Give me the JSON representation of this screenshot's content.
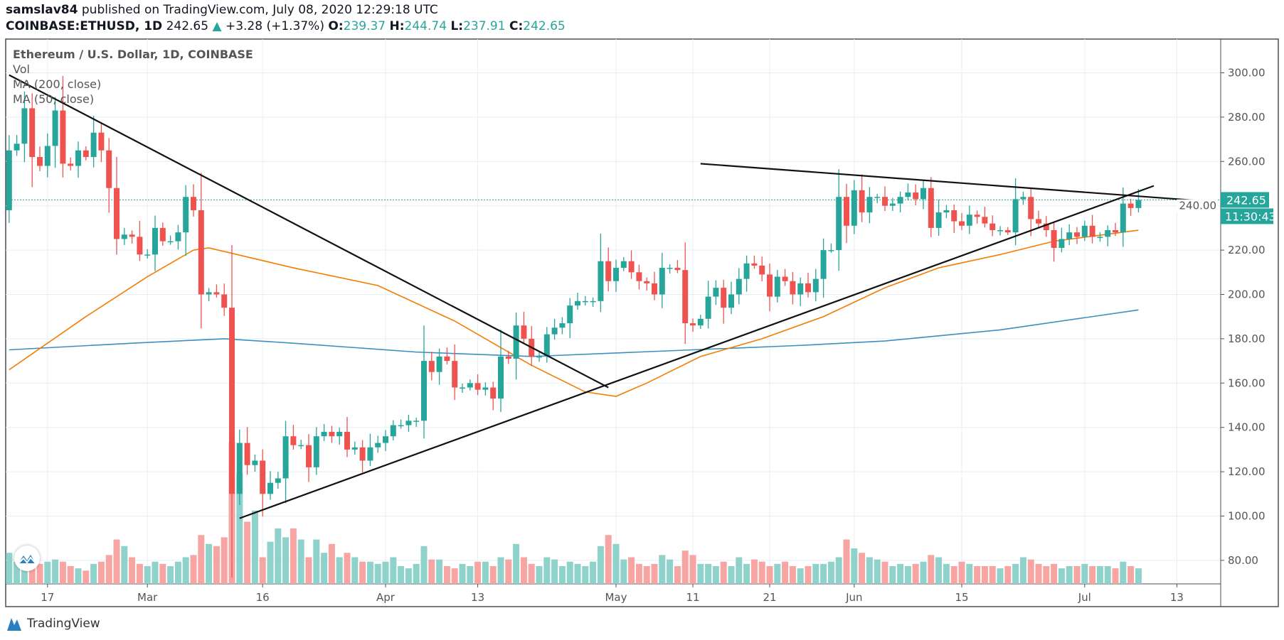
{
  "header": {
    "author": "samslav84",
    "published_text": "published on TradingView.com, July 08, 2020 12:29:18 UTC",
    "symbol": "COINBASE:ETHUSD, 1D",
    "last": "242.65",
    "change": "+3.28 (+1.37%)",
    "o_label": "O:",
    "o": "239.37",
    "h_label": "H:",
    "h": "244.74",
    "l_label": "L:",
    "l": "237.91",
    "c_label": "C:",
    "c": "242.65"
  },
  "legend": {
    "title": "Ethereum / U.S. Dollar, 1D, COINBASE",
    "vol": "Vol",
    "ma200": "MA (200, close)",
    "ma50": "MA (50, close)"
  },
  "price_badge": "242.65",
  "countdown_badge": "11:30:43",
  "footer": {
    "brand": "TradingView"
  },
  "colors": {
    "up": "#26a69a",
    "down": "#ef5350",
    "ma50": "#f57c00",
    "ma200": "#3a8fc0",
    "grid": "#e6eef4"
  },
  "chart_data": {
    "type": "candlestick",
    "title": "Ethereum / U.S. Dollar, 1D, COINBASE",
    "start_date": "2020-02-12",
    "ylim": [
      70,
      315
    ],
    "y_ticks": [
      "300.00",
      "280.00",
      "260.00",
      "240.00",
      "220.00",
      "200.00",
      "180.00",
      "160.00",
      "140.00",
      "120.00",
      "100.00",
      "80.00"
    ],
    "y_tick_values": [
      300,
      280,
      260,
      240,
      220,
      200,
      180,
      160,
      140,
      120,
      100,
      80
    ],
    "x_ticks": [
      {
        "label": "17",
        "date": "2020-02-17"
      },
      {
        "label": "Mar",
        "date": "2020-03-01"
      },
      {
        "label": "16",
        "date": "2020-03-16"
      },
      {
        "label": "Apr",
        "date": "2020-04-01"
      },
      {
        "label": "13",
        "date": "2020-04-13"
      },
      {
        "label": "May",
        "date": "2020-05-01"
      },
      {
        "label": "11",
        "date": "2020-05-11"
      },
      {
        "label": "21",
        "date": "2020-05-21"
      },
      {
        "label": "Jun",
        "date": "2020-06-01"
      },
      {
        "label": "15",
        "date": "2020-06-15"
      },
      {
        "label": "Jul",
        "date": "2020-07-01"
      },
      {
        "label": "13",
        "date": "2020-07-13"
      }
    ],
    "first_open": 238,
    "closes": [
      265,
      268,
      284,
      262,
      258,
      267,
      283,
      259,
      258,
      265,
      262,
      273,
      265,
      248,
      225,
      227,
      226,
      218,
      218,
      230,
      224,
      224,
      228,
      244,
      238,
      200,
      201,
      200,
      194,
      110,
      133,
      123,
      125,
      110,
      115,
      117,
      136,
      132,
      132,
      122,
      136,
      138,
      136,
      138,
      130,
      131,
      125,
      131,
      133,
      136,
      141,
      141,
      143,
      143,
      170,
      165,
      172,
      170,
      158,
      158,
      160,
      157,
      158,
      153,
      172,
      171,
      186,
      180,
      172,
      172,
      182,
      185,
      187,
      195,
      197,
      197,
      197,
      215,
      206,
      212,
      215,
      210,
      206,
      205,
      200,
      212,
      212,
      211,
      187,
      186,
      189,
      199,
      203,
      194,
      200,
      207,
      214,
      213,
      209,
      199,
      208,
      206,
      200,
      205,
      201,
      207,
      220,
      220,
      244,
      231,
      247,
      237,
      244,
      244,
      240,
      241,
      244,
      246,
      243,
      248,
      230,
      237,
      238,
      233,
      231,
      236,
      235,
      232,
      229,
      229,
      228,
      243,
      244,
      234,
      232,
      229,
      221,
      225,
      228,
      226,
      231,
      226,
      226,
      229,
      228,
      241,
      239,
      242.65
    ],
    "volume": [
      14,
      10,
      13,
      12,
      9,
      10,
      11,
      10,
      8,
      7,
      6,
      9,
      10,
      13,
      20,
      17,
      12,
      9,
      8,
      10,
      9,
      8,
      10,
      12,
      13,
      22,
      18,
      17,
      21,
      64,
      50,
      28,
      33,
      12,
      19,
      25,
      21,
      25,
      20,
      12,
      20,
      14,
      18,
      12,
      14,
      12,
      10,
      10,
      9,
      10,
      12,
      8,
      7,
      9,
      17,
      11,
      11,
      8,
      7,
      9,
      8,
      10,
      10,
      8,
      12,
      11,
      18,
      12,
      9,
      8,
      12,
      11,
      8,
      10,
      9,
      8,
      10,
      17,
      22,
      18,
      11,
      12,
      9,
      8,
      9,
      13,
      11,
      8,
      15,
      13,
      9,
      9,
      8,
      10,
      8,
      12,
      9,
      11,
      10,
      8,
      9,
      10,
      8,
      7,
      8,
      9,
      9,
      10,
      12,
      20,
      16,
      14,
      12,
      11,
      10,
      8,
      9,
      8,
      9,
      10,
      13,
      12,
      9,
      8,
      10,
      9,
      8,
      8,
      8,
      7,
      8,
      9,
      12,
      11,
      9,
      8,
      9,
      7,
      8,
      8,
      9,
      8,
      8,
      8,
      7,
      10,
      8,
      7
    ],
    "ma50": [
      [
        "2020-02-12",
        166
      ],
      [
        "2020-02-22",
        190
      ],
      [
        "2020-03-01",
        208
      ],
      [
        "2020-03-07",
        220
      ],
      [
        "2020-03-09",
        221
      ],
      [
        "2020-03-20",
        212
      ],
      [
        "2020-03-31",
        204
      ],
      [
        "2020-04-10",
        188
      ],
      [
        "2020-04-20",
        168
      ],
      [
        "2020-04-27",
        156
      ],
      [
        "2020-05-01",
        154
      ],
      [
        "2020-05-05",
        160
      ],
      [
        "2020-05-12",
        172
      ],
      [
        "2020-05-20",
        180
      ],
      [
        "2020-05-28",
        190
      ],
      [
        "2020-06-05",
        203
      ],
      [
        "2020-06-12",
        212
      ],
      [
        "2020-06-20",
        218
      ],
      [
        "2020-06-27",
        224
      ],
      [
        "2020-07-08",
        229
      ]
    ],
    "ma200": [
      [
        "2020-02-12",
        175
      ],
      [
        "2020-02-28",
        178
      ],
      [
        "2020-03-11",
        180
      ],
      [
        "2020-03-20",
        178
      ],
      [
        "2020-04-05",
        174
      ],
      [
        "2020-04-20",
        172
      ],
      [
        "2020-05-11",
        175
      ],
      [
        "2020-05-25",
        177
      ],
      [
        "2020-06-05",
        179
      ],
      [
        "2020-06-20",
        184
      ],
      [
        "2020-07-08",
        193
      ]
    ],
    "trendlines": [
      {
        "name": "descending-resistance",
        "from": [
          "2020-02-12",
          299
        ],
        "to": [
          "2020-04-30",
          158
        ]
      },
      {
        "name": "ascending-support",
        "from": [
          "2020-03-13",
          99
        ],
        "to": [
          "2020-07-10",
          249
        ]
      },
      {
        "name": "upper-resistance",
        "from": [
          "2020-05-12",
          259
        ],
        "to": [
          "2020-07-17",
          242
        ]
      }
    ],
    "last_price_line": 242.65
  }
}
